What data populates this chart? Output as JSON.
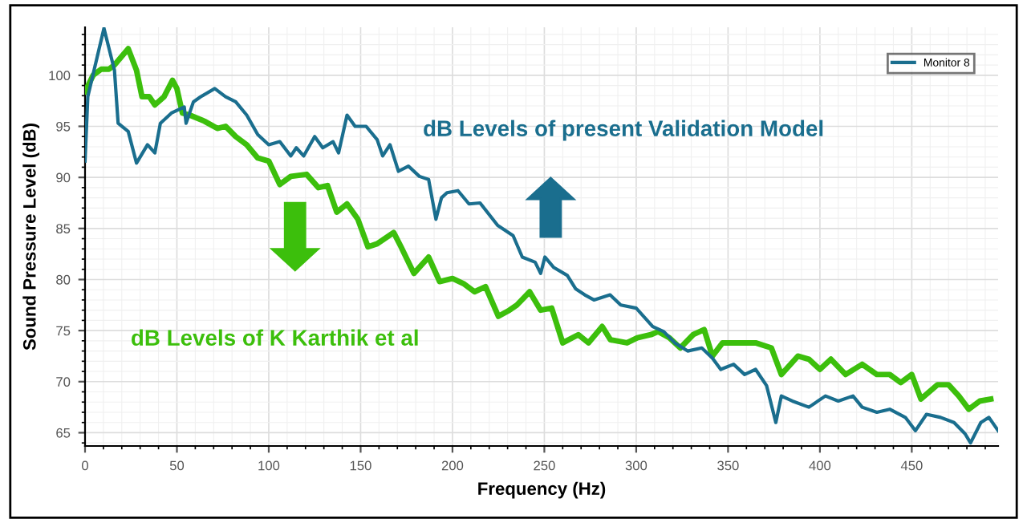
{
  "chart_data": {
    "type": "line",
    "xlabel": "Frequency (Hz)",
    "ylabel": "Sound Pressure Level (dB)",
    "xlim": [
      0,
      497
    ],
    "ylim": [
      63.7,
      104.7
    ],
    "xticks": [
      0,
      50,
      100,
      150,
      200,
      250,
      300,
      350,
      400,
      450
    ],
    "yticks": [
      65,
      70,
      75,
      80,
      85,
      90,
      95,
      100
    ],
    "grid": true,
    "legend": "top right",
    "marker": "none",
    "line_style": "solid",
    "series": [
      {
        "name": "Monitor 8",
        "color": "#1a6e8e",
        "x": [
          0,
          1.5,
          10.3,
          16,
          18,
          23.5,
          28,
          34,
          38,
          41,
          47,
          54,
          55,
          59,
          63,
          70.6,
          76.5,
          82,
          88,
          94,
          100,
          106,
          112,
          115,
          119,
          125,
          129.4,
          135,
          138,
          142.6,
          147,
          153,
          159,
          162,
          166,
          170.6,
          176,
          182,
          187,
          191,
          194,
          197,
          203,
          209,
          215,
          224.6,
          233,
          238,
          245,
          248,
          250.3,
          255,
          262.5,
          267,
          272,
          277,
          285.8,
          291.6,
          300,
          309,
          315,
          321,
          328,
          335.7,
          341.5,
          346,
          353,
          359,
          365,
          371,
          376,
          379,
          385,
          394,
          403,
          410,
          418,
          423,
          431,
          438,
          446.5,
          452,
          458,
          465.7,
          473,
          479,
          482,
          487.6,
          492,
          497
        ],
        "values": [
          91.6,
          97.9,
          104.6,
          100.5,
          95.3,
          94.5,
          91.4,
          93.2,
          92.4,
          95.3,
          96.3,
          96.9,
          95.3,
          97.4,
          97.9,
          98.7,
          97.9,
          97.4,
          96.1,
          94.2,
          93.2,
          93.5,
          92.1,
          92.9,
          92.1,
          94,
          92.9,
          93.5,
          92.4,
          96.1,
          95,
          95,
          93.7,
          92.1,
          93.2,
          90.6,
          91.1,
          90.1,
          89.8,
          85.9,
          88,
          88.5,
          88.7,
          87.4,
          87.5,
          85.3,
          84.3,
          82.2,
          81.7,
          80.6,
          82.2,
          81.2,
          80.4,
          79.1,
          78.5,
          78,
          78.5,
          77.5,
          77.2,
          75.4,
          74.9,
          73.8,
          73,
          73.3,
          72.3,
          71.2,
          71.7,
          70.7,
          71.2,
          69.6,
          66,
          68.6,
          68.1,
          67.5,
          68.6,
          68.1,
          68.6,
          67.5,
          67,
          67.3,
          66.5,
          65.2,
          66.8,
          66.5,
          66,
          64.9,
          64,
          66,
          66.5,
          65.2
        ]
      },
      {
        "color": "#3cbf0c",
        "x": [
          0,
          4.4,
          8.8,
          13,
          16,
          23.5,
          28,
          31,
          35,
          38,
          43,
          47.6,
          50,
          53,
          57,
          65,
          72,
          76.5,
          82,
          88,
          94,
          100,
          106,
          112,
          120.6,
          127,
          132,
          137,
          142.6,
          148.5,
          154,
          159,
          168,
          172,
          179,
          187,
          193,
          200,
          206,
          212,
          218,
          225,
          231,
          235,
          242,
          248,
          254,
          260,
          268.5,
          274,
          281.5,
          286,
          295,
          300.6,
          308,
          312,
          318,
          324,
          331,
          337,
          341.5,
          347,
          356,
          365,
          373.6,
          379,
          388,
          394,
          400,
          406,
          414,
          423,
          431,
          438,
          444,
          450,
          455,
          464,
          470,
          475.6,
          481,
          487,
          493
        ],
        "values": [
          98.4,
          100,
          100.6,
          100.6,
          101,
          102.6,
          100.5,
          97.9,
          97.9,
          97.1,
          97.9,
          99.5,
          98.7,
          96.3,
          96.1,
          95.5,
          94.8,
          95,
          94,
          93.2,
          91.9,
          91.6,
          89.3,
          90.1,
          90.3,
          89,
          89.2,
          86.6,
          87.4,
          85.9,
          83.2,
          83.5,
          84.6,
          83.2,
          80.6,
          82.2,
          79.8,
          80.1,
          79.6,
          78.8,
          79.3,
          76.4,
          77,
          77.5,
          78.8,
          77,
          77.2,
          73.8,
          74.6,
          73.8,
          75.4,
          74.1,
          73.8,
          74.3,
          74.6,
          74.9,
          74.3,
          73.3,
          74.6,
          75.1,
          72.5,
          73.8,
          73.8,
          73.8,
          73.3,
          70.7,
          72.5,
          72.2,
          71.2,
          72.2,
          70.7,
          71.7,
          70.7,
          70.7,
          69.9,
          70.7,
          68.3,
          69.7,
          69.7,
          68.6,
          67.3,
          68.1,
          68.3
        ]
      }
    ],
    "annotations": [
      "dB Levels of present Validation Model",
      "dB Levels of K Karthik et al"
    ]
  }
}
